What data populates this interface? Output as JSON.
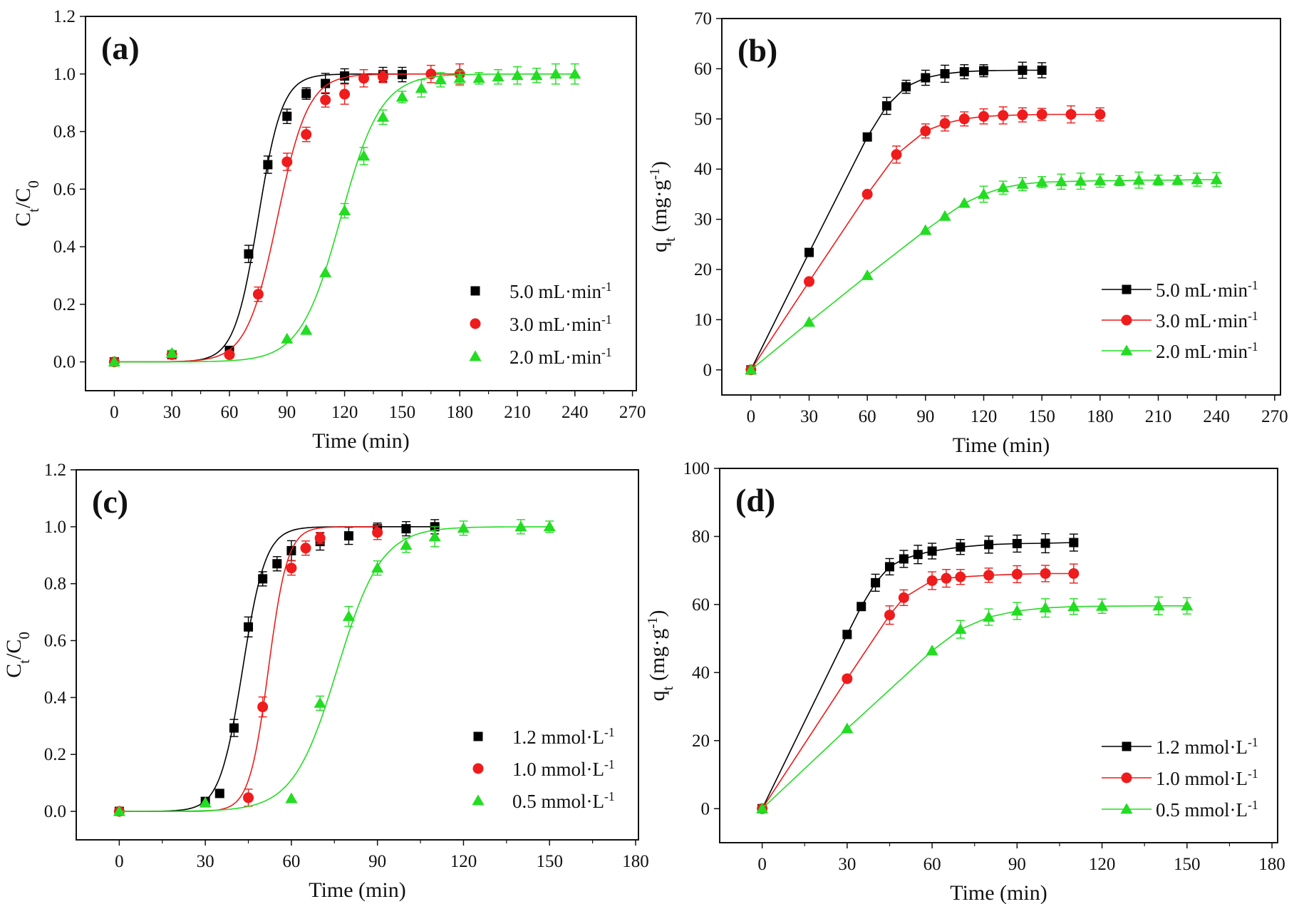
{
  "chart_data": [
    {
      "panel": "(a)",
      "type": "scatter",
      "xlabel": "Time (min)",
      "ylabel": [
        {
          "t": "C"
        },
        {
          "t": "t",
          "sub": true
        },
        {
          "t": "/C"
        },
        {
          "t": "0",
          "sub": true
        }
      ],
      "xlim": [
        -15,
        272
      ],
      "ylim": [
        -0.1,
        1.2
      ],
      "xticks": [
        0,
        30,
        60,
        90,
        120,
        150,
        180,
        210,
        240,
        270
      ],
      "yticks": [
        0.0,
        0.2,
        0.4,
        0.6,
        0.8,
        1.0,
        1.2
      ],
      "ydecimals": 1,
      "legend_position": "bottom-right",
      "legend_lines": false,
      "fit_curves": true,
      "series": [
        {
          "name": "5.0 mL·min",
          "sup": "-1",
          "color": "#000000",
          "marker": "square",
          "x": [
            0,
            30,
            60,
            70,
            80,
            90,
            100,
            110,
            120,
            140,
            150
          ],
          "y": [
            0,
            0.025,
            0.04,
            0.375,
            0.685,
            0.853,
            0.932,
            0.967,
            0.993,
            0.998,
            0.998
          ],
          "err": [
            0,
            0.01,
            0.01,
            0.03,
            0.03,
            0.025,
            0.02,
            0.035,
            0.025,
            0.025,
            0.025
          ]
        },
        {
          "name": "3.0 mL·min",
          "sup": "-1",
          "color": "#ee1c1c",
          "marker": "circle",
          "x": [
            0,
            30,
            60,
            75,
            90,
            100,
            110,
            120,
            130,
            140,
            165,
            180
          ],
          "y": [
            0,
            0.025,
            0.025,
            0.235,
            0.695,
            0.79,
            0.91,
            0.93,
            0.985,
            0.99,
            1.0,
            1.0
          ],
          "err": [
            0,
            0,
            0,
            0.025,
            0.03,
            0.025,
            0.025,
            0.035,
            0.03,
            0.02,
            0.03,
            0.035
          ]
        },
        {
          "name": "2.0 mL·min",
          "sup": "-1",
          "color": "#22dd22",
          "marker": "triangle",
          "x": [
            0,
            30,
            90,
            100,
            110,
            120,
            130,
            140,
            150,
            160,
            170,
            180,
            190,
            200,
            210,
            220,
            230,
            240
          ],
          "y": [
            0,
            0.03,
            0.08,
            0.11,
            0.31,
            0.525,
            0.715,
            0.85,
            0.92,
            0.95,
            0.98,
            0.985,
            0.985,
            0.99,
            0.995,
            0.995,
            1.0,
            1.0
          ],
          "err": [
            0,
            0.01,
            0,
            0,
            0,
            0.025,
            0.03,
            0.025,
            0.02,
            0.03,
            0.025,
            0.025,
            0.02,
            0.025,
            0.03,
            0.025,
            0.035,
            0.035
          ]
        }
      ]
    },
    {
      "panel": "(b)",
      "type": "line",
      "xlabel": "Time (min)",
      "ylabel": [
        {
          "t": "q"
        },
        {
          "t": "t",
          "sub": true
        },
        {
          "t": " (mg·g"
        },
        {
          "t": "-1",
          "sup": true
        },
        {
          "t": ")"
        }
      ],
      "xlim": [
        -15,
        273
      ],
      "ylim": [
        -5,
        70
      ],
      "xticks": [
        0,
        30,
        60,
        90,
        120,
        150,
        180,
        210,
        240,
        270
      ],
      "yticks": [
        0,
        10,
        20,
        30,
        40,
        50,
        60,
        70
      ],
      "ydecimals": 0,
      "legend_position": "bottom-right",
      "legend_lines": true,
      "fit_curves": false,
      "series": [
        {
          "name": "5.0 mL·min",
          "sup": "-1",
          "color": "#000000",
          "marker": "square",
          "x": [
            0,
            30,
            60,
            70,
            80,
            90,
            100,
            110,
            120,
            140,
            150
          ],
          "y": [
            0,
            23.4,
            46.4,
            52.6,
            56.4,
            58.2,
            59.0,
            59.4,
            59.6,
            59.7,
            59.7
          ],
          "err": [
            0,
            0,
            0,
            1.7,
            1.3,
            1.5,
            1.7,
            1.4,
            1.2,
            1.6,
            1.5
          ]
        },
        {
          "name": "3.0 mL·min",
          "sup": "-1",
          "color": "#ee1c1c",
          "marker": "circle",
          "x": [
            0,
            30,
            60,
            75,
            90,
            100,
            110,
            120,
            130,
            140,
            150,
            165,
            180
          ],
          "y": [
            0,
            17.6,
            35.0,
            42.9,
            47.6,
            49.1,
            50.0,
            50.5,
            50.7,
            50.8,
            50.9,
            50.9,
            50.9
          ],
          "err": [
            0,
            0,
            0,
            1.7,
            1.4,
            1.5,
            1.4,
            1.5,
            1.7,
            1.4,
            1.2,
            1.7,
            1.3
          ]
        },
        {
          "name": "2.0 mL·min",
          "sup": "-1",
          "color": "#22dd22",
          "marker": "triangle",
          "x": [
            0,
            30,
            60,
            90,
            100,
            110,
            120,
            130,
            140,
            150,
            160,
            170,
            180,
            190,
            200,
            210,
            220,
            230,
            240
          ],
          "y": [
            0,
            9.5,
            18.8,
            27.8,
            30.6,
            33.2,
            35.0,
            36.3,
            37.0,
            37.4,
            37.5,
            37.6,
            37.7,
            37.7,
            37.8,
            37.8,
            37.8,
            37.9,
            37.9
          ],
          "err": [
            0,
            0,
            0,
            0,
            0,
            0,
            1.6,
            1.3,
            1.3,
            1.1,
            1.5,
            1.6,
            1.3,
            1.0,
            1.6,
            1.0,
            0.9,
            1.3,
            1.4
          ]
        }
      ]
    },
    {
      "panel": "(c)",
      "type": "scatter",
      "xlabel": "Time (min)",
      "ylabel": [
        {
          "t": "C"
        },
        {
          "t": "t",
          "sub": true
        },
        {
          "t": "/C"
        },
        {
          "t": "0",
          "sub": true
        }
      ],
      "xlim": [
        -15,
        181
      ],
      "ylim": [
        -0.1,
        1.2
      ],
      "xticks": [
        0,
        30,
        60,
        90,
        120,
        150,
        180
      ],
      "yticks": [
        0.0,
        0.2,
        0.4,
        0.6,
        0.8,
        1.0,
        1.2
      ],
      "ydecimals": 1,
      "legend_position": "bottom-right",
      "legend_lines": false,
      "fit_curves": true,
      "series": [
        {
          "name": "1.2 mmol·L",
          "sup": "-1",
          "color": "#000000",
          "marker": "square",
          "x": [
            0,
            30,
            35,
            40,
            45,
            50,
            55,
            60,
            70,
            80,
            90,
            100,
            110
          ],
          "y": [
            0,
            0.035,
            0.063,
            0.293,
            0.648,
            0.817,
            0.87,
            0.916,
            0.948,
            0.968,
            0.993,
            0.993,
            1.0
          ],
          "err": [
            0,
            0.01,
            0,
            0.03,
            0.035,
            0.025,
            0.025,
            0.035,
            0.03,
            0.03,
            0.02,
            0.025,
            0.025
          ]
        },
        {
          "name": "1.0 mmol·L",
          "sup": "-1",
          "color": "#ee1c1c",
          "marker": "circle",
          "x": [
            0,
            45,
            50,
            60,
            65,
            70,
            90
          ],
          "y": [
            0,
            0.048,
            0.367,
            0.855,
            0.925,
            0.96,
            0.98
          ],
          "err": [
            0,
            0.03,
            0.035,
            0.025,
            0.025,
            0.02,
            0.025
          ]
        },
        {
          "name": "0.5 mmol·L",
          "sup": "-1",
          "color": "#22dd22",
          "marker": "triangle",
          "x": [
            0,
            30,
            60,
            70,
            80,
            90,
            100,
            110,
            120,
            140,
            150
          ],
          "y": [
            0,
            0.03,
            0.045,
            0.38,
            0.685,
            0.855,
            0.935,
            0.965,
            0.995,
            1.0,
            1.0
          ],
          "err": [
            0,
            0,
            0,
            0.025,
            0.035,
            0.025,
            0.025,
            0.035,
            0.025,
            0.025,
            0.02
          ]
        }
      ]
    },
    {
      "panel": "(d)",
      "type": "line",
      "xlabel": "Time (min)",
      "ylabel": [
        {
          "t": "q"
        },
        {
          "t": "t",
          "sub": true
        },
        {
          "t": " (mg·g"
        },
        {
          "t": "-1",
          "sup": true
        },
        {
          "t": ")"
        }
      ],
      "xlim": [
        -15,
        182
      ],
      "ylim": [
        -10,
        100
      ],
      "xticks": [
        0,
        30,
        60,
        90,
        120,
        150,
        180
      ],
      "yticks": [
        0,
        20,
        40,
        60,
        80,
        100
      ],
      "ydecimals": 0,
      "legend_position": "bottom-right",
      "legend_lines": true,
      "fit_curves": false,
      "series": [
        {
          "name": "1.2 mmol·L",
          "sup": "-1",
          "color": "#000000",
          "marker": "square",
          "x": [
            0,
            30,
            35,
            40,
            45,
            50,
            55,
            60,
            70,
            80,
            90,
            100,
            110
          ],
          "y": [
            0,
            51.2,
            59.4,
            66.4,
            71.1,
            73.4,
            74.7,
            75.7,
            76.9,
            77.6,
            77.9,
            78.0,
            78.2
          ],
          "err": [
            0,
            0,
            0,
            2.5,
            2.4,
            2.5,
            2.7,
            2.3,
            2.2,
            2.5,
            2.5,
            2.8,
            2.5
          ]
        },
        {
          "name": "1.0 mmol·L",
          "sup": "-1",
          "color": "#ee1c1c",
          "marker": "circle",
          "x": [
            0,
            30,
            45,
            50,
            60,
            65,
            70,
            80,
            90,
            100,
            110
          ],
          "y": [
            0,
            38.2,
            56.9,
            62.0,
            67.0,
            67.7,
            68.1,
            68.6,
            68.9,
            69.1,
            69.1
          ],
          "err": [
            0,
            0,
            2.7,
            2.3,
            2.6,
            2.6,
            2.2,
            2.1,
            2.5,
            2.4,
            2.8
          ]
        },
        {
          "name": "0.5 mmol·L",
          "sup": "-1",
          "color": "#22dd22",
          "marker": "triangle",
          "x": [
            0,
            30,
            60,
            70,
            80,
            90,
            100,
            110,
            120,
            140,
            150
          ],
          "y": [
            0,
            23.5,
            46.4,
            52.7,
            56.3,
            58.1,
            59.0,
            59.4,
            59.5,
            59.6,
            59.6
          ],
          "err": [
            0,
            0,
            0,
            2.6,
            2.4,
            2.5,
            2.7,
            2.3,
            2.1,
            2.6,
            2.4
          ]
        }
      ]
    }
  ]
}
